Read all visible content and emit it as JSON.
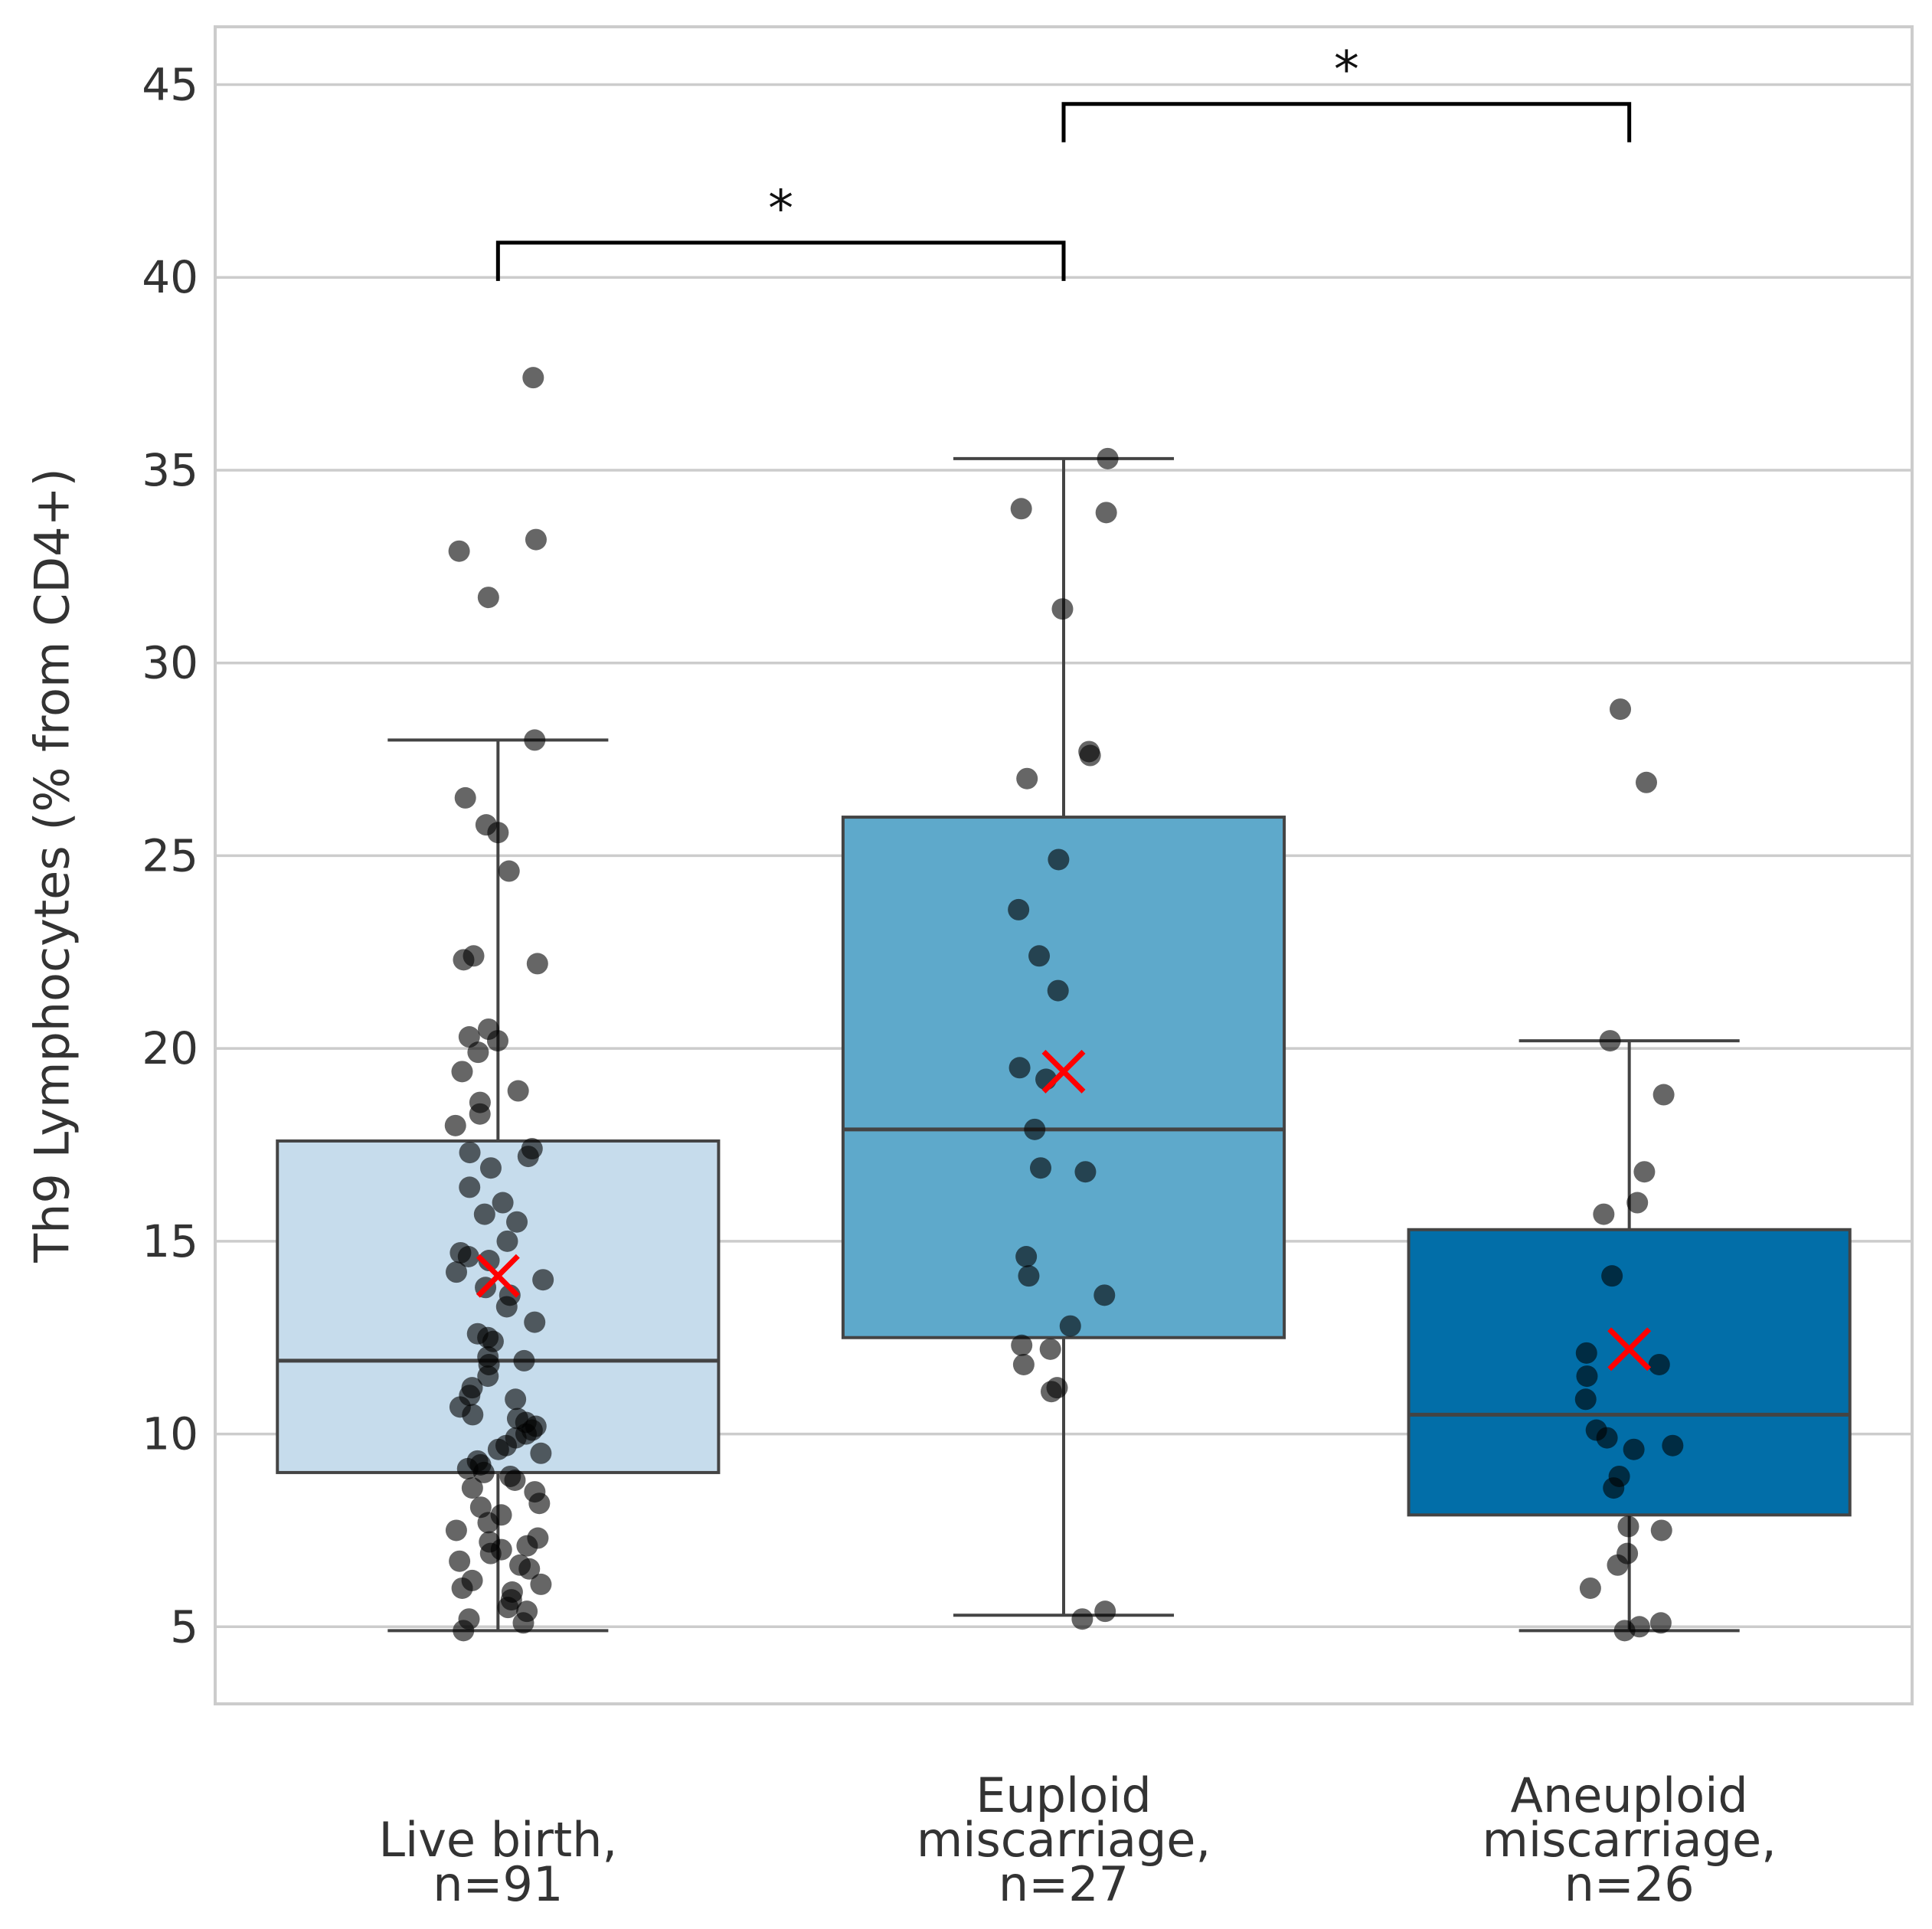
{
  "chart_data": {
    "type": "box",
    "title": "",
    "xlabel": "",
    "ylabel": "Th9 Lymphocytes (% from CD4+)",
    "ylim": [
      3,
      46.5
    ],
    "yticks": [
      5,
      10,
      15,
      20,
      25,
      30,
      35,
      40,
      45
    ],
    "grid": "horizontal",
    "colors": {
      "grid": "#cccccc",
      "frame": "#cccccc",
      "box_edge": "#444444",
      "points": "#000000",
      "mean_marker": "#ff0000",
      "bracket": "#000000"
    },
    "categories": [
      {
        "label_lines": [
          "Live birth,",
          "n=91"
        ],
        "box_color": "#c6dcec",
        "q1": 9.0,
        "median": 11.9,
        "q3": 17.6,
        "whisker_low": 4.9,
        "whisker_high": 28.0,
        "mean": 14.1,
        "points": [
          37.4,
          33.2,
          32.9,
          31.7,
          28.0,
          26.5,
          25.8,
          25.6,
          24.6,
          22.4,
          22.3,
          22.2,
          20.5,
          20.3,
          20.2,
          19.9,
          19.4,
          18.9,
          18.6,
          18.3,
          18.0,
          17.4,
          17.3,
          17.2,
          16.9,
          16.4,
          16.0,
          15.7,
          15.5,
          15.0,
          14.7,
          14.6,
          14.5,
          14.2,
          14.0,
          13.8,
          13.6,
          13.3,
          12.9,
          12.6,
          12.5,
          12.4,
          12.0,
          11.9,
          11.8,
          11.5,
          11.2,
          11.0,
          10.9,
          10.7,
          10.5,
          10.4,
          10.3,
          10.2,
          10.1,
          10.0,
          9.9,
          9.7,
          9.6,
          9.5,
          9.3,
          9.2,
          9.1,
          9.0,
          8.9,
          8.8,
          8.6,
          8.5,
          8.2,
          8.1,
          7.9,
          7.7,
          7.5,
          7.3,
          7.2,
          7.1,
          7.0,
          6.9,
          6.7,
          6.6,
          6.5,
          6.2,
          6.1,
          6.0,
          5.9,
          5.7,
          5.5,
          5.4,
          5.2,
          5.1,
          4.9
        ]
      },
      {
        "label_lines": [
          "Euploid",
          "miscarriage,",
          "n=27"
        ],
        "box_color": "#5ea9cb",
        "q1": 12.5,
        "median": 17.9,
        "q3": 26.0,
        "whisker_low": 5.3,
        "whisker_high": 35.3,
        "mean": 19.4,
        "points": [
          35.3,
          34.0,
          33.9,
          31.4,
          27.7,
          27.6,
          27.0,
          24.9,
          23.6,
          22.4,
          21.5,
          19.5,
          19.2,
          17.9,
          16.9,
          16.8,
          14.6,
          14.1,
          13.6,
          12.8,
          12.3,
          12.2,
          11.8,
          11.2,
          11.1,
          5.4,
          5.2
        ]
      },
      {
        "label_lines": [
          "Aneuploid",
          "miscarriage,",
          "n=26"
        ],
        "box_color": "#026ea8",
        "q1": 7.9,
        "median": 10.5,
        "q3": 15.3,
        "whisker_low": 4.9,
        "whisker_high": 20.2,
        "mean": 12.2,
        "points": [
          28.8,
          26.9,
          20.2,
          18.8,
          16.8,
          16.0,
          15.7,
          14.1,
          12.1,
          11.8,
          11.5,
          10.9,
          10.1,
          9.9,
          9.7,
          9.6,
          8.9,
          8.6,
          7.6,
          7.5,
          6.9,
          6.6,
          6.0,
          5.1,
          5.0,
          4.9
        ]
      }
    ],
    "significance": [
      {
        "from": 0,
        "to": 1,
        "y": 40.9,
        "label": "*"
      },
      {
        "from": 1,
        "to": 2,
        "y": 44.5,
        "label": "*"
      }
    ]
  }
}
